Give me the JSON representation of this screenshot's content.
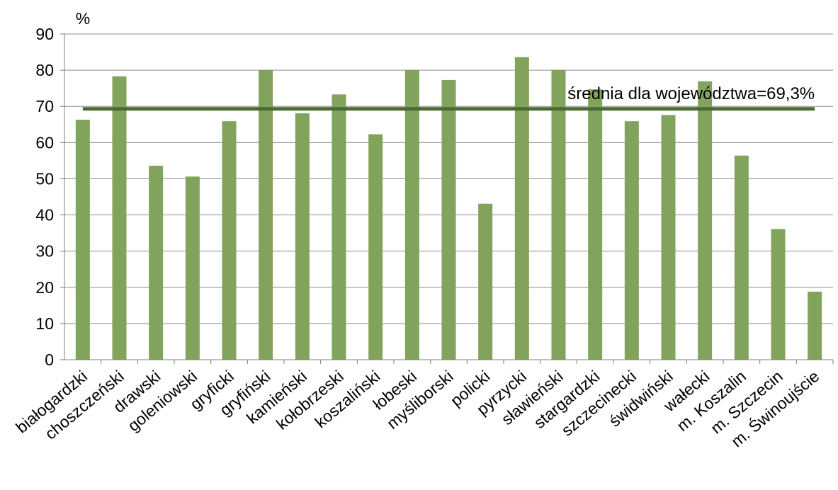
{
  "chart_data": {
    "type": "bar",
    "ylabel": "%",
    "ylim": [
      0,
      90
    ],
    "yticks": [
      "0",
      "10",
      "20",
      "30",
      "40",
      "50",
      "60",
      "70",
      "80",
      "90"
    ],
    "grid": true,
    "legend": "none",
    "categories": [
      "białogardzki",
      "choszczeński",
      "drawski",
      "goleniowski",
      "gryficki",
      "gryfiński",
      "kamieński",
      "kołobrzeski",
      "koszaliński",
      "łobeski",
      "myśliborski",
      "policki",
      "pyrzycki",
      "sławieński",
      "stargardzki",
      "szczecinecki",
      "świdwiński",
      "wałecki",
      "m. Koszalin",
      "m. Szczecin",
      "m. Świnoujście"
    ],
    "values": [
      66.3,
      78.3,
      53.6,
      50.6,
      65.9,
      80.1,
      68.1,
      73.3,
      62.3,
      80.1,
      77.3,
      43.1,
      83.6,
      80.1,
      74.7,
      65.9,
      67.6,
      76.9,
      56.4,
      36.1,
      18.8
    ],
    "reference_line": {
      "value": 69.3,
      "label": "średnia dla województwa=69,3%"
    },
    "colors": {
      "bar": "#82A35C",
      "line": "#4B6B34",
      "grid": "#8C8C8C",
      "axis": "#7F7F7F"
    }
  }
}
